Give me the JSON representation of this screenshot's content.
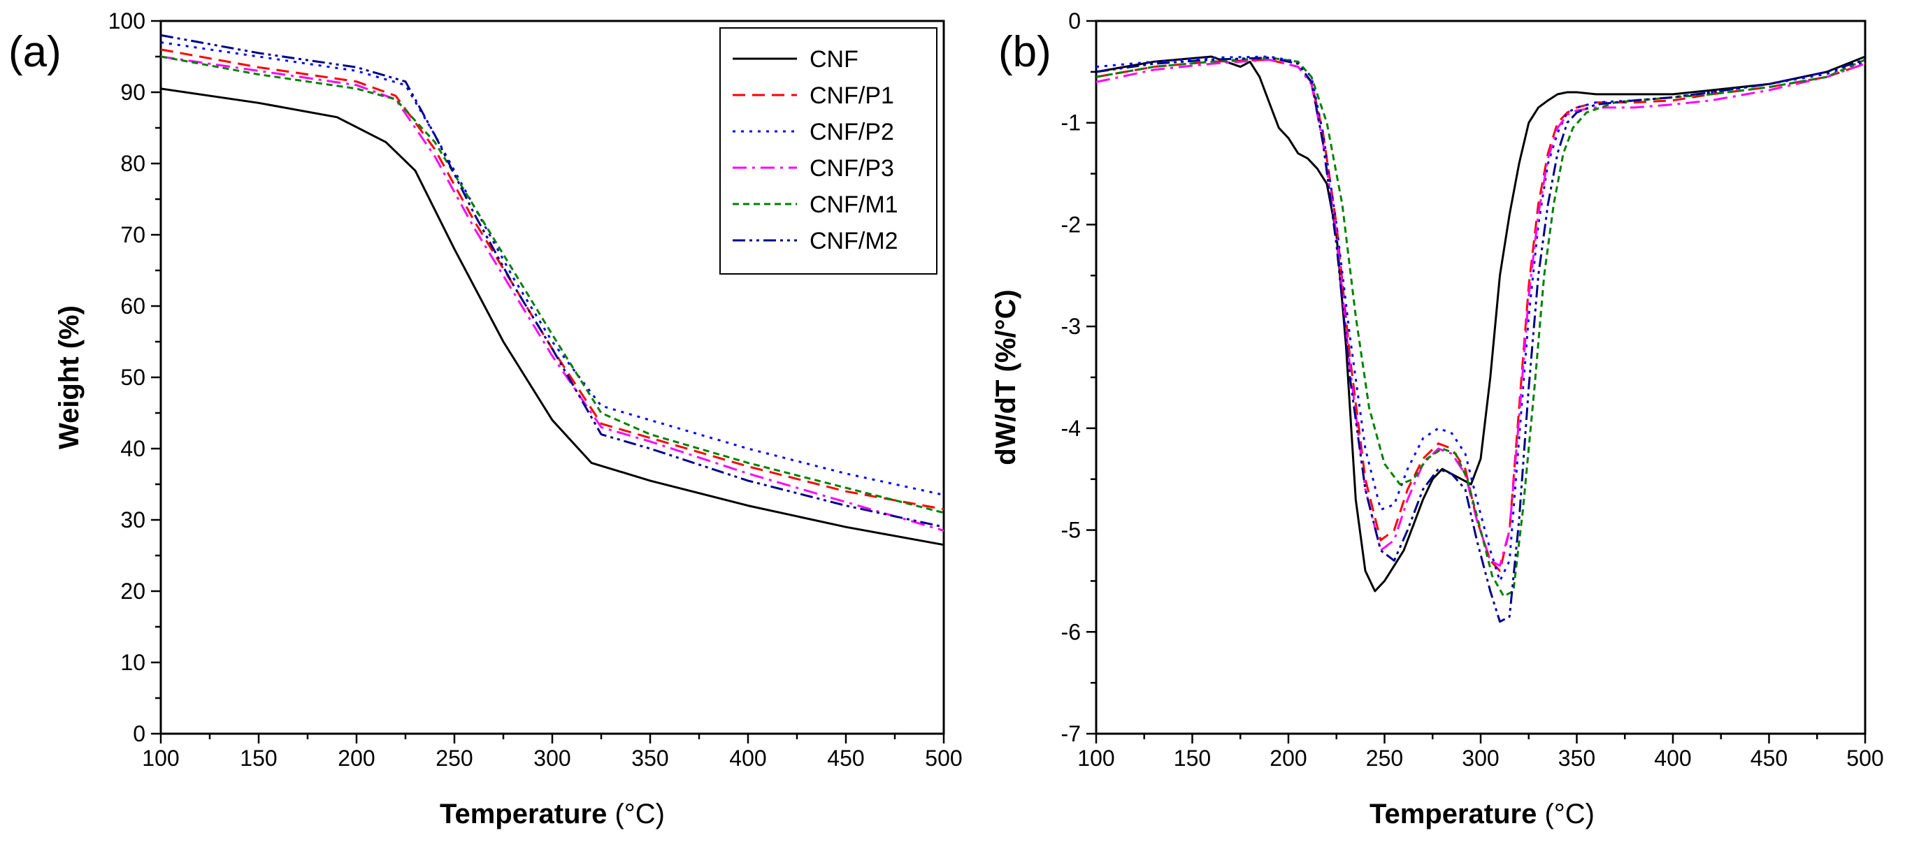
{
  "series_styles": [
    {
      "name": "CNF",
      "color": "#000000",
      "dash": "solid"
    },
    {
      "name": "CNF/P1",
      "color": "#ff0000",
      "dash": "dash"
    },
    {
      "name": "CNF/P2",
      "color": "#0000ff",
      "dash": "dot"
    },
    {
      "name": "CNF/P3",
      "color": "#ff00ff",
      "dash": "dashdot"
    },
    {
      "name": "CNF/M1",
      "color": "#008000",
      "dash": "shortdash"
    },
    {
      "name": "CNF/M2",
      "color": "#00008b",
      "dash": "dashdotdot"
    }
  ],
  "chart_data": [
    {
      "type": "line",
      "panel_label": "(a)",
      "xlabel": "Temperature",
      "xunit": "(°C)",
      "ylabel": "Weight (%)",
      "xlim": [
        100,
        500
      ],
      "ylim": [
        0,
        100
      ],
      "xticks": [
        100,
        150,
        200,
        250,
        300,
        350,
        400,
        450,
        500
      ],
      "yticks": [
        0,
        10,
        20,
        30,
        40,
        50,
        60,
        70,
        80,
        90,
        100
      ],
      "legend": "top-right",
      "series": [
        {
          "name": "CNF",
          "x": [
            100,
            150,
            190,
            215,
            230,
            250,
            275,
            300,
            320,
            350,
            400,
            450,
            500
          ],
          "y": [
            90.5,
            88.5,
            86.5,
            83,
            79,
            68,
            55,
            44,
            38,
            35.5,
            32,
            29,
            26.5
          ]
        },
        {
          "name": "CNF/P1",
          "x": [
            100,
            150,
            200,
            220,
            240,
            260,
            280,
            300,
            325,
            350,
            400,
            450,
            500
          ],
          "y": [
            96,
            93.5,
            91.5,
            89.5,
            82,
            72,
            63,
            54,
            43.5,
            41.5,
            37.5,
            34,
            31.5
          ]
        },
        {
          "name": "CNF/P2",
          "x": [
            100,
            150,
            200,
            225,
            240,
            260,
            280,
            300,
            325,
            350,
            400,
            450,
            500
          ],
          "y": [
            97,
            95,
            93,
            91,
            84,
            74,
            64,
            55,
            46,
            44,
            40,
            36.5,
            33.5
          ]
        },
        {
          "name": "CNF/P3",
          "x": [
            100,
            150,
            200,
            220,
            240,
            260,
            280,
            300,
            325,
            350,
            400,
            450,
            500
          ],
          "y": [
            95,
            93,
            91,
            89,
            81,
            71,
            62,
            53,
            43,
            41,
            36.5,
            32.5,
            28.5
          ]
        },
        {
          "name": "CNF/M1",
          "x": [
            100,
            150,
            200,
            220,
            240,
            260,
            280,
            300,
            325,
            350,
            400,
            450,
            500
          ],
          "y": [
            95,
            92.5,
            90.5,
            89,
            83,
            74,
            65,
            56,
            45,
            42,
            38,
            34.5,
            31
          ]
        },
        {
          "name": "CNF/M2",
          "x": [
            100,
            150,
            200,
            225,
            240,
            260,
            280,
            300,
            325,
            350,
            400,
            450,
            500
          ],
          "y": [
            98,
            95.5,
            93.5,
            91.5,
            84,
            73,
            63,
            54,
            42,
            40,
            35.5,
            32,
            29
          ]
        }
      ]
    },
    {
      "type": "line",
      "panel_label": "(b)",
      "xlabel": "Temperature",
      "xunit": "(°C)",
      "ylabel": "dW/dT (%/°C)",
      "xlim": [
        100,
        500
      ],
      "ylim": [
        -7,
        0
      ],
      "xticks": [
        100,
        150,
        200,
        250,
        300,
        350,
        400,
        450,
        500
      ],
      "yticks": [
        0,
        -1,
        -2,
        -3,
        -4,
        -5,
        -6,
        -7
      ],
      "series": [
        {
          "name": "CNF",
          "x": [
            100,
            130,
            160,
            175,
            180,
            185,
            190,
            195,
            200,
            205,
            210,
            215,
            220,
            225,
            230,
            235,
            240,
            245,
            250,
            255,
            260,
            265,
            270,
            275,
            280,
            285,
            290,
            295,
            300,
            305,
            310,
            315,
            320,
            325,
            330,
            335,
            340,
            345,
            350,
            360,
            380,
            400,
            420,
            450,
            480,
            500
          ],
          "y": [
            -0.5,
            -0.4,
            -0.35,
            -0.45,
            -0.4,
            -0.55,
            -0.8,
            -1.05,
            -1.15,
            -1.3,
            -1.35,
            -1.45,
            -1.6,
            -2.1,
            -3.2,
            -4.7,
            -5.4,
            -5.6,
            -5.5,
            -5.35,
            -5.2,
            -4.95,
            -4.7,
            -4.5,
            -4.4,
            -4.45,
            -4.5,
            -4.55,
            -4.3,
            -3.5,
            -2.5,
            -1.9,
            -1.4,
            -1.0,
            -0.85,
            -0.78,
            -0.72,
            -0.7,
            -0.7,
            -0.72,
            -0.72,
            -0.72,
            -0.68,
            -0.62,
            -0.5,
            -0.35
          ]
        },
        {
          "name": "CNF/P1",
          "x": [
            100,
            130,
            160,
            190,
            205,
            212,
            218,
            225,
            232,
            240,
            248,
            255,
            262,
            270,
            278,
            285,
            292,
            298,
            305,
            310,
            315,
            320,
            325,
            330,
            335,
            340,
            345,
            350,
            360,
            380,
            400,
            420,
            450,
            480,
            500
          ],
          "y": [
            -0.55,
            -0.45,
            -0.4,
            -0.38,
            -0.45,
            -0.6,
            -1.1,
            -2.0,
            -3.3,
            -4.5,
            -5.1,
            -5.0,
            -4.6,
            -4.3,
            -4.15,
            -4.2,
            -4.4,
            -4.9,
            -5.3,
            -5.4,
            -5.0,
            -3.8,
            -2.6,
            -1.8,
            -1.3,
            -1.0,
            -0.9,
            -0.85,
            -0.8,
            -0.8,
            -0.78,
            -0.72,
            -0.65,
            -0.55,
            -0.42
          ]
        },
        {
          "name": "CNF/P2",
          "x": [
            100,
            130,
            160,
            190,
            205,
            212,
            218,
            225,
            232,
            240,
            248,
            255,
            262,
            270,
            278,
            285,
            292,
            298,
            305,
            310,
            315,
            320,
            325,
            330,
            335,
            340,
            345,
            350,
            360,
            380,
            400,
            420,
            450,
            480,
            500
          ],
          "y": [
            -0.45,
            -0.4,
            -0.36,
            -0.35,
            -0.4,
            -0.55,
            -1.1,
            -2.0,
            -3.1,
            -4.2,
            -4.8,
            -4.75,
            -4.4,
            -4.1,
            -4.0,
            -4.05,
            -4.25,
            -4.7,
            -5.2,
            -5.5,
            -5.3,
            -4.1,
            -2.9,
            -2.0,
            -1.4,
            -1.1,
            -0.9,
            -0.85,
            -0.8,
            -0.78,
            -0.75,
            -0.7,
            -0.62,
            -0.52,
            -0.4
          ]
        },
        {
          "name": "CNF/P3",
          "x": [
            100,
            130,
            160,
            190,
            205,
            212,
            218,
            225,
            232,
            240,
            248,
            255,
            262,
            270,
            278,
            285,
            292,
            298,
            305,
            310,
            315,
            320,
            325,
            330,
            335,
            340,
            345,
            350,
            360,
            380,
            400,
            420,
            450,
            480,
            500
          ],
          "y": [
            -0.6,
            -0.48,
            -0.42,
            -0.38,
            -0.45,
            -0.62,
            -1.2,
            -2.1,
            -3.4,
            -4.6,
            -5.2,
            -5.1,
            -4.7,
            -4.35,
            -4.2,
            -4.25,
            -4.45,
            -4.9,
            -5.3,
            -5.35,
            -5.0,
            -3.9,
            -2.7,
            -1.9,
            -1.35,
            -1.05,
            -0.92,
            -0.88,
            -0.85,
            -0.85,
            -0.82,
            -0.78,
            -0.68,
            -0.55,
            -0.42
          ]
        },
        {
          "name": "CNF/M1",
          "x": [
            100,
            130,
            160,
            190,
            205,
            212,
            220,
            228,
            235,
            242,
            250,
            258,
            265,
            272,
            280,
            287,
            293,
            300,
            306,
            312,
            317,
            322,
            328,
            333,
            338,
            343,
            348,
            355,
            370,
            400,
            420,
            450,
            480,
            500
          ],
          "y": [
            -0.55,
            -0.45,
            -0.4,
            -0.36,
            -0.4,
            -0.55,
            -1.0,
            -1.8,
            -2.9,
            -3.8,
            -4.35,
            -4.55,
            -4.5,
            -4.3,
            -4.2,
            -4.25,
            -4.5,
            -5.0,
            -5.45,
            -5.65,
            -5.6,
            -4.8,
            -3.6,
            -2.5,
            -1.8,
            -1.3,
            -1.05,
            -0.9,
            -0.8,
            -0.75,
            -0.72,
            -0.65,
            -0.55,
            -0.38
          ]
        },
        {
          "name": "CNF/M2",
          "x": [
            100,
            130,
            160,
            190,
            205,
            212,
            218,
            225,
            232,
            240,
            248,
            255,
            262,
            270,
            278,
            285,
            292,
            298,
            305,
            310,
            315,
            320,
            325,
            330,
            335,
            340,
            345,
            350,
            360,
            380,
            400,
            420,
            450,
            480,
            500
          ],
          "y": [
            -0.5,
            -0.42,
            -0.38,
            -0.36,
            -0.42,
            -0.6,
            -1.2,
            -2.2,
            -3.5,
            -4.6,
            -5.2,
            -5.3,
            -5.0,
            -4.6,
            -4.4,
            -4.45,
            -4.6,
            -5.1,
            -5.6,
            -5.9,
            -5.85,
            -4.9,
            -3.6,
            -2.5,
            -1.8,
            -1.3,
            -1.0,
            -0.9,
            -0.82,
            -0.78,
            -0.75,
            -0.7,
            -0.62,
            -0.5,
            -0.38
          ]
        }
      ]
    }
  ]
}
